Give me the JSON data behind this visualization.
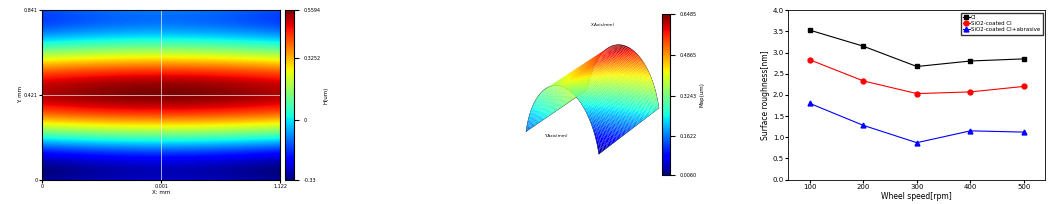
{
  "line_chart": {
    "x": [
      100,
      200,
      300,
      400,
      500
    ],
    "CI": [
      3.53,
      3.15,
      2.67,
      2.8,
      2.85
    ],
    "SiO2_CI": [
      2.83,
      2.33,
      2.03,
      2.07,
      2.2
    ],
    "SiO2_CI_abrasive": [
      1.8,
      1.28,
      0.87,
      1.15,
      1.12
    ],
    "xlabel": "Wheel speed[rpm]",
    "ylabel": "Surface roughness[nm]",
    "ylim": [
      0.0,
      4.0
    ],
    "yticks": [
      0.0,
      0.5,
      1.0,
      1.5,
      2.0,
      2.5,
      3.0,
      3.5,
      4.0
    ],
    "xticks": [
      100,
      200,
      300,
      400,
      500
    ],
    "legend_labels": [
      "CI",
      "SiO2-coated CI",
      "SiO2-coated CI+abrasive"
    ],
    "line_colors": [
      "black",
      "red",
      "blue"
    ],
    "markers": [
      "s",
      "o",
      "^"
    ]
  },
  "heatmap": {
    "xlabel": "X: mm",
    "ylabel": "Y: mm",
    "colorbar_label": "H(um)",
    "vmin": -0.33,
    "vmax": 0.5594,
    "colorbar_ticks": [
      -0.33,
      0.0,
      0.3252,
      0.5594
    ],
    "colorbar_ticklabels": [
      "-0.33",
      "0",
      "0.3252",
      "0.5594"
    ],
    "x_tickvals": [
      0.0,
      0.5,
      1.0
    ],
    "x_ticklabels": [
      "0",
      "0.001",
      "1.122"
    ],
    "y_tickvals": [
      0.0,
      0.5,
      1.0
    ],
    "y_ticklabels": [
      "0",
      "0.421",
      "0.841"
    ]
  },
  "surface3d": {
    "colorbar_label": "Map(um)",
    "vmin": 0.006,
    "vmax": 0.6485,
    "ticks": [
      0.006,
      0.1622,
      0.3243,
      0.4865,
      0.6485
    ],
    "tick_labels": [
      "0.0060",
      "0.1622",
      "0.3243",
      "0.4865",
      "0.6485"
    ]
  }
}
